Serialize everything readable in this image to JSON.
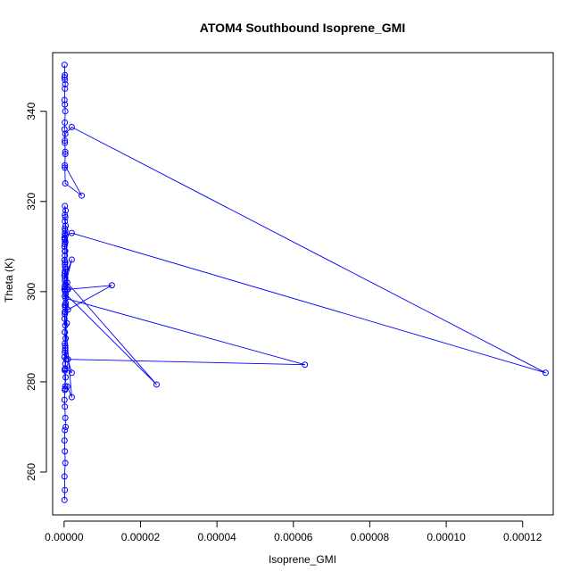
{
  "chart_data": {
    "type": "line",
    "title": "ATOM4 Southbound Isoprene_GMI",
    "xlabel": "Isoprene_GMI",
    "ylabel": "Theta (K)",
    "xlim": [
      -3e-06,
      0.000128
    ],
    "ylim": [
      250.5,
      353
    ],
    "x_ticks": [
      0,
      2e-05,
      4e-05,
      6e-05,
      8e-05,
      0.0001,
      0.00012
    ],
    "x_tick_labels": [
      "0.00000",
      "0.00002",
      "0.00004",
      "0.00006",
      "0.00008",
      "0.00010",
      "0.00012"
    ],
    "y_ticks": [
      260,
      280,
      300,
      320,
      340
    ],
    "y_tick_labels": [
      "260",
      "280",
      "300",
      "320",
      "340"
    ],
    "grid": false,
    "legend": "none",
    "colors": {
      "series": "#0000ff",
      "axes": "#000000"
    },
    "marker": "open-circle",
    "series": [
      {
        "x": [
          1e-07,
          2e-07,
          1e-07,
          3e-07,
          2e-07,
          1e-07,
          2e-07,
          4e-07,
          3e-07,
          2e-07,
          1e-07,
          2e-07,
          3e-07,
          4e-07,
          2e-07,
          3e-07,
          1e-07,
          2e-07,
          3e-07,
          2e-07,
          4e-07,
          2e-07,
          3e-07,
          1e-07,
          2e-07,
          3e-07,
          4e-07,
          2e-07,
          3e-07,
          1e-07,
          2e-07,
          3e-07,
          2e-07,
          1e-07,
          2e-07,
          3e-07,
          2e-07,
          1e-07,
          2e-07,
          3e-07,
          1e-07,
          2e-07,
          3e-07,
          2e-07,
          1e-07,
          2e-07,
          3e-07,
          2e-07,
          4e-07,
          2e-07,
          3e-07,
          2e-07,
          4e-07,
          2e-07,
          1e-06,
          1.25e-05,
          1e-06,
          3e-07,
          2e-07,
          2e-06,
          8e-07,
          3e-07,
          2e-07,
          5e-07,
          3e-07,
          2e-07,
          7e-07,
          4e-07,
          3e-07,
          2e-07,
          2e-06,
          3e-07,
          4e-07,
          8e-07,
          2e-07,
          4e-07,
          6.3e-05,
          1e-06,
          3e-07,
          2e-06,
          3e-07,
          8e-07,
          2.42e-05,
          4e-07,
          3e-07,
          2e-07,
          3e-07,
          2e-07,
          3e-07,
          2e-07,
          4e-07,
          2e-06,
          0.000126,
          2e-06,
          3e-07,
          2e-07,
          3e-07,
          2e-07,
          3e-07,
          4.6e-06,
          2e-07,
          3e-07,
          2e-07,
          1e-07,
          2e-07,
          3e-07,
          2e-07,
          1e-07,
          2e-07,
          3e-07,
          2e-07,
          1e-07,
          2e-07,
          1e-07
        ],
        "y": [
          253.8,
          256,
          259,
          262,
          264.6,
          267,
          269.3,
          270,
          272,
          274.5,
          276,
          278.2,
          279,
          281,
          282.8,
          284,
          285.5,
          286.5,
          287.5,
          288.5,
          289.6,
          291,
          292.5,
          294,
          295.5,
          296.5,
          297.5,
          299,
          300,
          300.5,
          301.2,
          301.8,
          302.5,
          303.5,
          304.5,
          305.4,
          306,
          307,
          308,
          309,
          310,
          310.5,
          311,
          311.5,
          312,
          312.8,
          313.5,
          314,
          314.6,
          315.6,
          316.5,
          317,
          318,
          319,
          300.5,
          301.4,
          296,
          295.5,
          295,
          276.6,
          279,
          278.5,
          282.5,
          285,
          288,
          291,
          293,
          297,
          300,
          301,
          307.1,
          303,
          305,
          300.5,
          297,
          298.5,
          283.8,
          285,
          287,
          282,
          283,
          302,
          279.4,
          299.5,
          300.5,
          304,
          306.5,
          309,
          311,
          311.7,
          312.5,
          313,
          282,
          336.5,
          335,
          333,
          331,
          327.5,
          324,
          321.3,
          328,
          330.5,
          333.5,
          336,
          337.5,
          340,
          341.5,
          342.5,
          345,
          346,
          347,
          347.5,
          348,
          350.3
        ]
      }
    ]
  }
}
